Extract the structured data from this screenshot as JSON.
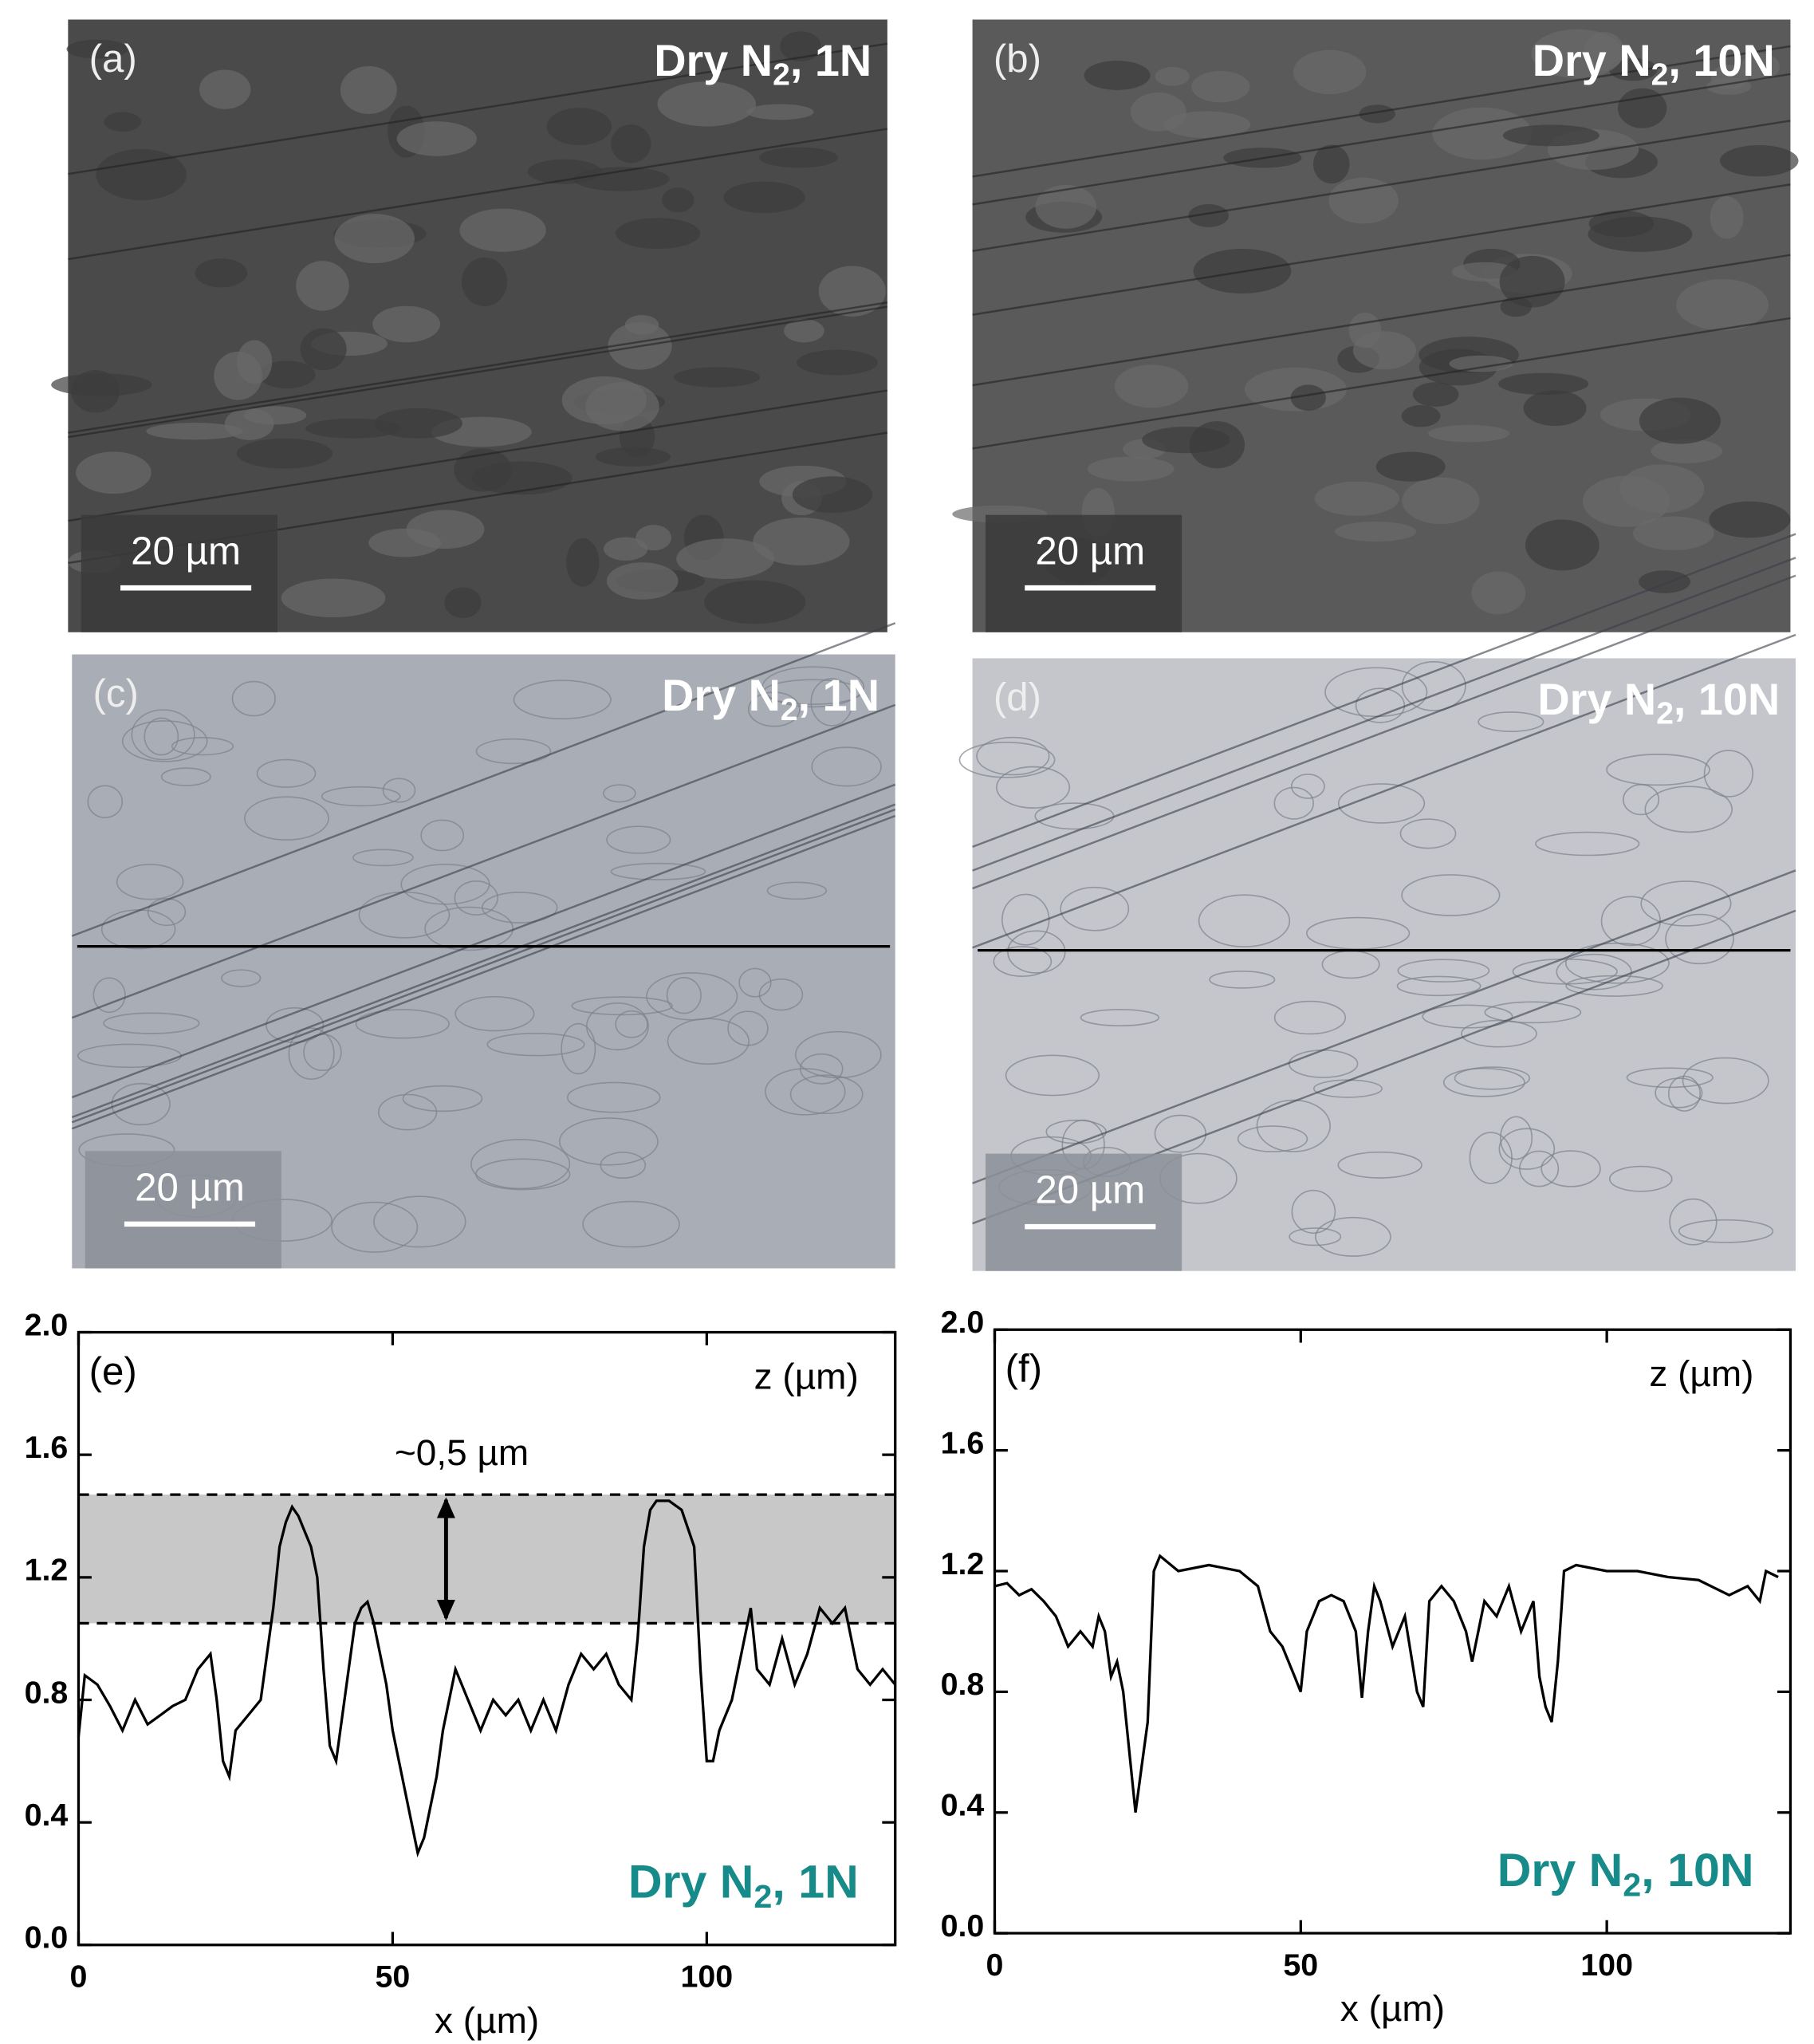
{
  "images": [
    {
      "label": "(a)",
      "condition": [
        "Dry N",
        "2",
        ", 1N"
      ],
      "scale_bar": "20 µm"
    },
    {
      "label": "(b)",
      "condition": [
        "Dry N",
        "2",
        ", 10N"
      ],
      "scale_bar": "20 µm"
    },
    {
      "label": "(c)",
      "condition": [
        "Dry N",
        "2",
        ", 1N"
      ],
      "scale_bar": "20 µm"
    },
    {
      "label": "(d)",
      "condition": [
        "Dry N",
        "2",
        ", 10N"
      ],
      "scale_bar": "20 µm"
    }
  ],
  "chart_data": [
    {
      "type": "line",
      "label": "(e)",
      "condition": [
        "Dry N",
        "2",
        ", 1N"
      ],
      "xlabel": "x (µm)",
      "ylabel": "z (µm)",
      "annotation": "~0,5 µm",
      "band": [
        1.05,
        1.47
      ],
      "x": [
        0,
        1,
        3,
        5,
        7,
        9,
        11,
        13,
        15,
        17,
        19,
        21,
        22,
        23,
        24,
        25,
        27,
        29,
        31,
        32,
        33,
        34,
        35,
        36,
        37,
        38,
        39,
        40,
        41,
        42,
        43,
        44,
        45,
        46,
        47,
        48,
        49,
        50,
        51,
        52,
        53,
        54,
        55,
        56,
        57,
        58,
        59,
        60,
        62,
        64,
        66,
        68,
        70,
        72,
        74,
        76,
        78,
        80,
        82,
        84,
        86,
        88,
        89,
        90,
        91,
        92,
        94,
        96,
        98,
        99,
        100,
        101,
        102,
        104,
        106,
        107,
        108,
        110,
        112,
        114,
        116,
        118,
        120,
        122,
        124,
        126,
        128,
        130
      ],
      "series": [
        {
          "color": "#000000",
          "values": [
            0.68,
            0.88,
            0.85,
            0.78,
            0.7,
            0.8,
            0.72,
            0.75,
            0.78,
            0.8,
            0.9,
            0.95,
            0.8,
            0.6,
            0.55,
            0.7,
            0.75,
            0.8,
            1.1,
            1.3,
            1.38,
            1.43,
            1.4,
            1.35,
            1.3,
            1.2,
            0.9,
            0.65,
            0.6,
            0.75,
            0.9,
            1.05,
            1.1,
            1.12,
            1.05,
            0.95,
            0.85,
            0.7,
            0.6,
            0.5,
            0.4,
            0.3,
            0.35,
            0.45,
            0.55,
            0.7,
            0.8,
            0.9,
            0.8,
            0.7,
            0.8,
            0.75,
            0.8,
            0.7,
            0.8,
            0.7,
            0.85,
            0.95,
            0.9,
            0.95,
            0.85,
            0.8,
            1.0,
            1.3,
            1.42,
            1.45,
            1.45,
            1.42,
            1.3,
            0.9,
            0.6,
            0.6,
            0.7,
            0.8,
            1.0,
            1.1,
            0.9,
            0.85,
            1.0,
            0.85,
            0.95,
            1.1,
            1.05,
            1.1,
            0.9,
            0.85,
            0.9,
            0.85
          ]
        }
      ],
      "xlim": [
        0,
        130
      ],
      "ylim": [
        0,
        2.0
      ],
      "xticks": [
        0,
        50,
        100
      ],
      "yticks": [
        {
          "value": 0,
          "label": "0.0"
        },
        0.4,
        0.8,
        1.2,
        1.6,
        {
          "value": 2,
          "label": "2.0"
        }
      ]
    },
    {
      "type": "line",
      "label": "(f)",
      "condition": [
        "Dry N",
        "2",
        ", 10N"
      ],
      "xlabel": "x (µm)",
      "ylabel": "z (µm)",
      "x": [
        0,
        2,
        4,
        6,
        8,
        10,
        12,
        14,
        16,
        17,
        18,
        19,
        20,
        21,
        22,
        23,
        24,
        25,
        26,
        27,
        30,
        35,
        40,
        43,
        45,
        47,
        49,
        50,
        51,
        53,
        55,
        57,
        59,
        60,
        61,
        62,
        63,
        65,
        67,
        69,
        70,
        71,
        73,
        75,
        77,
        78,
        79,
        80,
        82,
        84,
        86,
        88,
        89,
        90,
        91,
        92,
        93,
        95,
        100,
        105,
        110,
        115,
        120,
        123,
        125,
        126,
        128
      ],
      "series": [
        {
          "color": "#000000",
          "values": [
            1.15,
            1.16,
            1.12,
            1.14,
            1.1,
            1.05,
            0.95,
            1.0,
            0.95,
            1.05,
            1.0,
            0.85,
            0.9,
            0.8,
            0.6,
            0.4,
            0.55,
            0.7,
            1.2,
            1.25,
            1.2,
            1.22,
            1.2,
            1.15,
            1.0,
            0.95,
            0.85,
            0.8,
            1.0,
            1.1,
            1.12,
            1.1,
            1.0,
            0.78,
            1.0,
            1.15,
            1.1,
            0.95,
            1.05,
            0.8,
            0.75,
            1.1,
            1.15,
            1.1,
            1.0,
            0.9,
            1.0,
            1.1,
            1.05,
            1.15,
            1.0,
            1.1,
            0.85,
            0.75,
            0.7,
            0.9,
            1.2,
            1.22,
            1.2,
            1.2,
            1.18,
            1.17,
            1.12,
            1.15,
            1.1,
            1.2,
            1.18
          ]
        }
      ],
      "xlim": [
        0,
        130
      ],
      "ylim": [
        0,
        2.0
      ],
      "xticks": [
        0,
        50,
        100
      ],
      "yticks": [
        {
          "value": 0,
          "label": "0.0"
        },
        0.4,
        0.8,
        1.2,
        1.6,
        {
          "value": 2,
          "label": "2.0"
        }
      ]
    }
  ]
}
